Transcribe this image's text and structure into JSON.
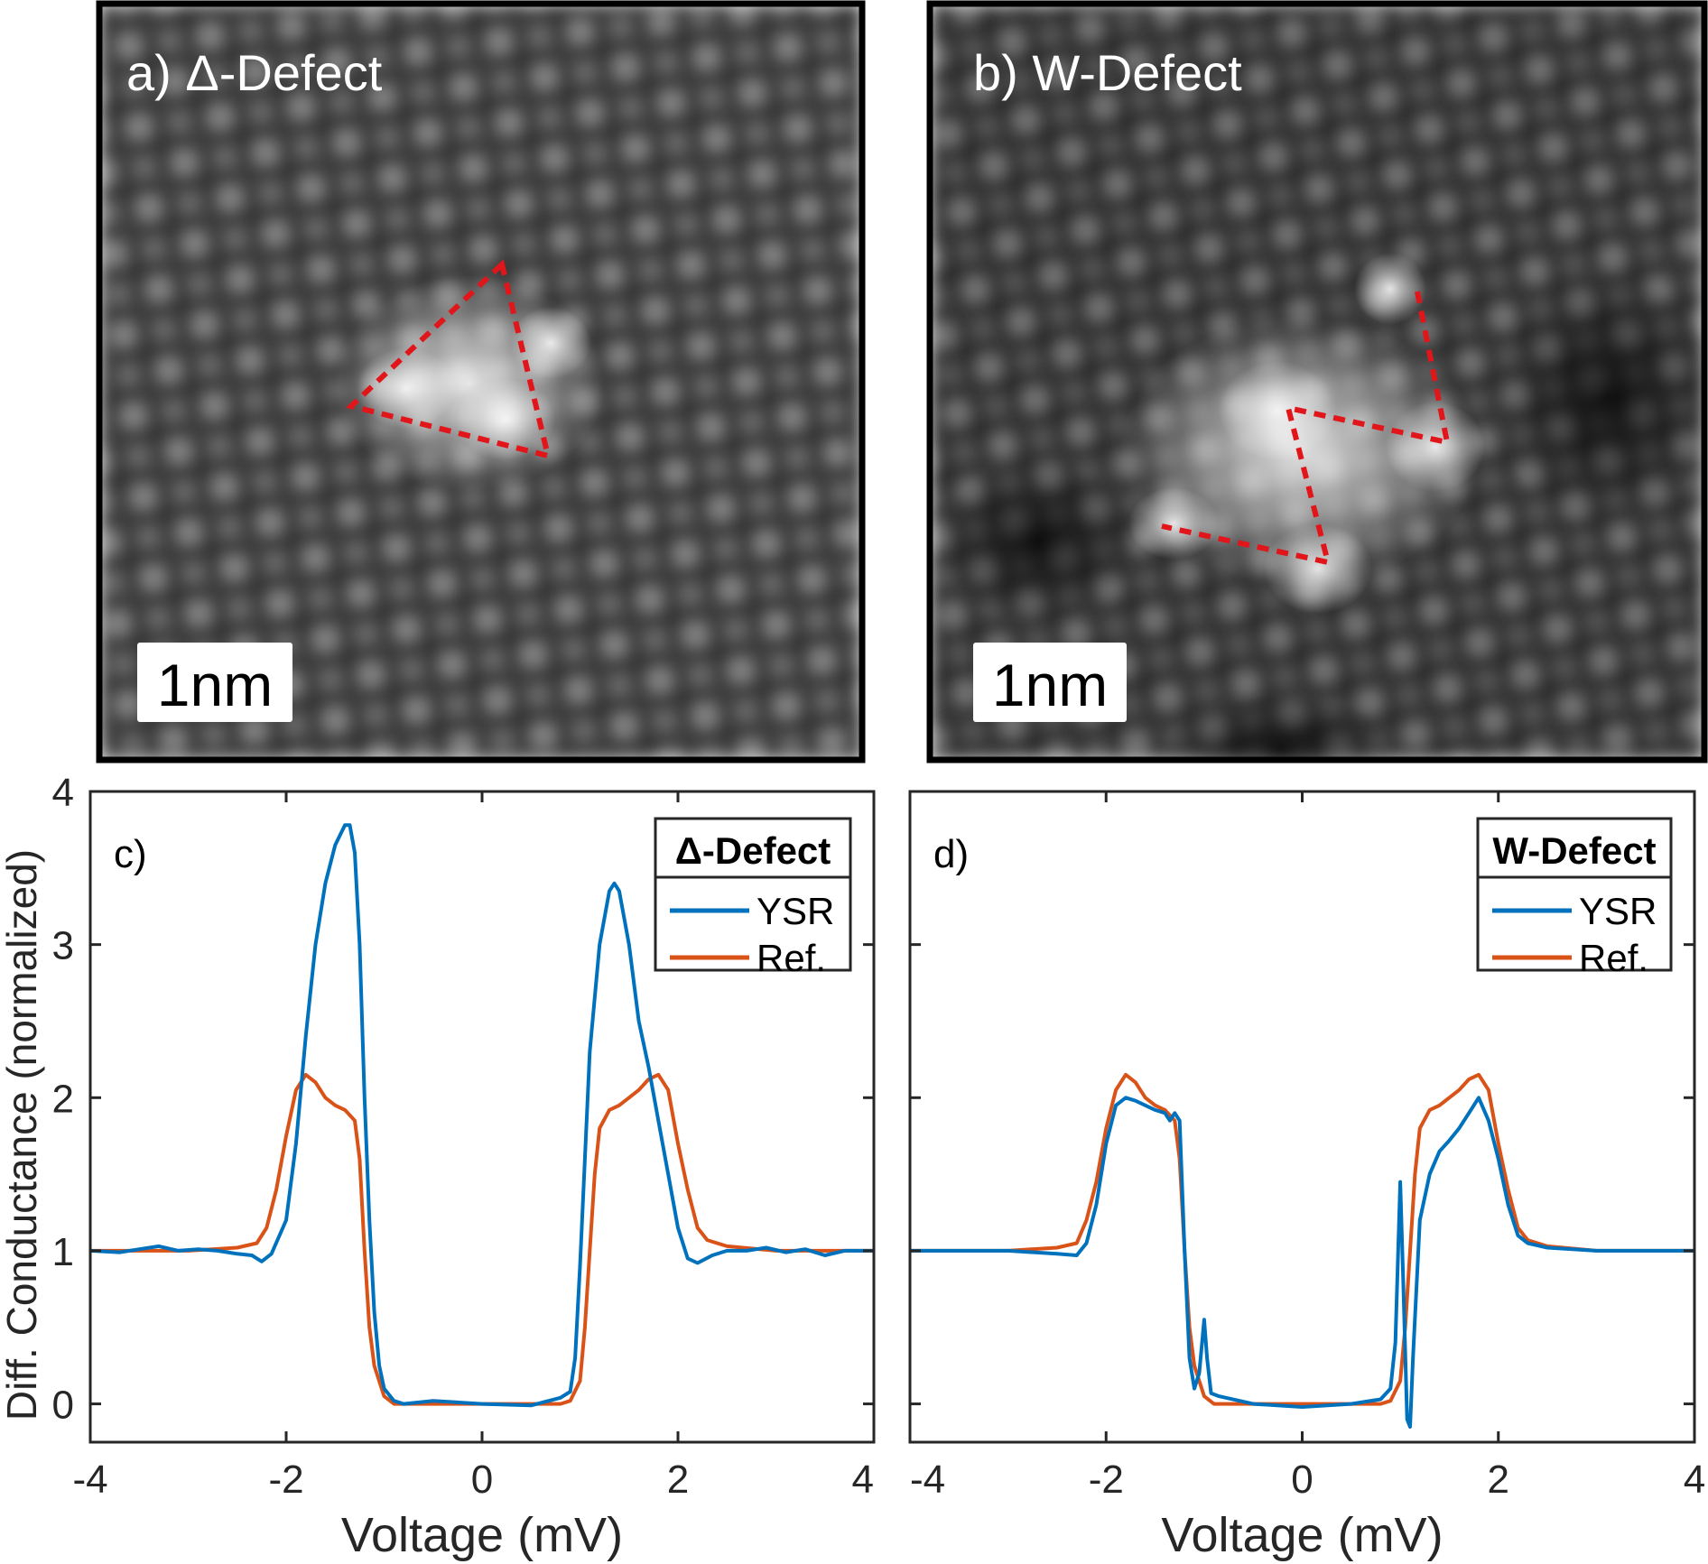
{
  "panels": {
    "a": {
      "label": "a) Δ-Defect",
      "scale_bar": "1nm"
    },
    "b": {
      "label": "b) W-Defect",
      "scale_bar": "1nm"
    }
  },
  "chart_data": [
    {
      "panel": "c)",
      "type": "line",
      "xlabel": "Voltage (mV)",
      "ylabel": "Diff. Conductance (normalized)",
      "xlim": [
        -4,
        4
      ],
      "ylim": [
        -0.25,
        4
      ],
      "xticks": [
        -4,
        -2,
        0,
        2,
        4
      ],
      "yticks": [
        0,
        1,
        2,
        3,
        4
      ],
      "legend": {
        "title": "Δ-Defect",
        "position": "top-right"
      },
      "series": [
        {
          "name": "YSR",
          "color": "#0072BD",
          "points": [
            [
              -4,
              1.0
            ],
            [
              -3.7,
              0.99
            ],
            [
              -3.5,
              1.01
            ],
            [
              -3.3,
              1.03
            ],
            [
              -3.1,
              1.0
            ],
            [
              -2.9,
              1.01
            ],
            [
              -2.7,
              1.0
            ],
            [
              -2.5,
              0.98
            ],
            [
              -2.35,
              0.97
            ],
            [
              -2.25,
              0.93
            ],
            [
              -2.15,
              0.98
            ],
            [
              -2.0,
              1.2
            ],
            [
              -1.9,
              1.7
            ],
            [
              -1.8,
              2.4
            ],
            [
              -1.7,
              3.0
            ],
            [
              -1.6,
              3.4
            ],
            [
              -1.5,
              3.65
            ],
            [
              -1.4,
              3.78
            ],
            [
              -1.35,
              3.78
            ],
            [
              -1.3,
              3.6
            ],
            [
              -1.25,
              3.0
            ],
            [
              -1.2,
              2.0
            ],
            [
              -1.15,
              1.2
            ],
            [
              -1.1,
              0.6
            ],
            [
              -1.05,
              0.25
            ],
            [
              -1.0,
              0.1
            ],
            [
              -0.9,
              0.02
            ],
            [
              -0.8,
              0.0
            ],
            [
              -0.5,
              0.02
            ],
            [
              0,
              0.0
            ],
            [
              0.5,
              -0.01
            ],
            [
              0.8,
              0.04
            ],
            [
              0.9,
              0.08
            ],
            [
              0.95,
              0.3
            ],
            [
              1.0,
              0.9
            ],
            [
              1.05,
              1.6
            ],
            [
              1.1,
              2.3
            ],
            [
              1.2,
              3.0
            ],
            [
              1.3,
              3.35
            ],
            [
              1.35,
              3.4
            ],
            [
              1.4,
              3.35
            ],
            [
              1.5,
              3.0
            ],
            [
              1.6,
              2.5
            ],
            [
              1.7,
              2.2
            ],
            [
              1.8,
              1.85
            ],
            [
              1.9,
              1.5
            ],
            [
              2.0,
              1.15
            ],
            [
              2.1,
              0.95
            ],
            [
              2.2,
              0.92
            ],
            [
              2.35,
              0.97
            ],
            [
              2.5,
              1.0
            ],
            [
              2.7,
              1.0
            ],
            [
              2.9,
              1.02
            ],
            [
              3.1,
              0.99
            ],
            [
              3.3,
              1.01
            ],
            [
              3.5,
              0.97
            ],
            [
              3.7,
              1.0
            ],
            [
              4,
              1.0
            ]
          ]
        },
        {
          "name": "Ref.",
          "color": "#D95319",
          "points": [
            [
              -4,
              1.0
            ],
            [
              -3.5,
              1.0
            ],
            [
              -3,
              1.0
            ],
            [
              -2.5,
              1.02
            ],
            [
              -2.3,
              1.05
            ],
            [
              -2.2,
              1.15
            ],
            [
              -2.1,
              1.4
            ],
            [
              -2.0,
              1.75
            ],
            [
              -1.9,
              2.05
            ],
            [
              -1.8,
              2.15
            ],
            [
              -1.7,
              2.1
            ],
            [
              -1.6,
              2.0
            ],
            [
              -1.5,
              1.95
            ],
            [
              -1.4,
              1.92
            ],
            [
              -1.3,
              1.85
            ],
            [
              -1.25,
              1.6
            ],
            [
              -1.2,
              1.0
            ],
            [
              -1.15,
              0.5
            ],
            [
              -1.1,
              0.25
            ],
            [
              -1.0,
              0.05
            ],
            [
              -0.9,
              0.0
            ],
            [
              0,
              0.0
            ],
            [
              0.8,
              0.0
            ],
            [
              0.9,
              0.02
            ],
            [
              1.0,
              0.15
            ],
            [
              1.05,
              0.5
            ],
            [
              1.1,
              1.0
            ],
            [
              1.15,
              1.5
            ],
            [
              1.2,
              1.8
            ],
            [
              1.3,
              1.92
            ],
            [
              1.4,
              1.95
            ],
            [
              1.5,
              2.0
            ],
            [
              1.6,
              2.05
            ],
            [
              1.7,
              2.12
            ],
            [
              1.8,
              2.15
            ],
            [
              1.9,
              2.05
            ],
            [
              2.0,
              1.7
            ],
            [
              2.1,
              1.4
            ],
            [
              2.2,
              1.15
            ],
            [
              2.3,
              1.07
            ],
            [
              2.5,
              1.03
            ],
            [
              3,
              1.0
            ],
            [
              3.5,
              1.0
            ],
            [
              4,
              1.0
            ]
          ]
        }
      ]
    },
    {
      "panel": "d)",
      "type": "line",
      "xlabel": "Voltage (mV)",
      "ylabel": "",
      "xlim": [
        -4,
        4
      ],
      "ylim": [
        -0.25,
        4
      ],
      "xticks": [
        -4,
        -2,
        0,
        2,
        4
      ],
      "yticks": [
        0,
        1,
        2,
        3,
        4
      ],
      "legend": {
        "title": "W-Defect",
        "position": "top-right"
      },
      "series": [
        {
          "name": "YSR",
          "color": "#0072BD",
          "points": [
            [
              -4,
              1.0
            ],
            [
              -3.5,
              1.0
            ],
            [
              -3,
              1.0
            ],
            [
              -2.5,
              0.98
            ],
            [
              -2.3,
              0.97
            ],
            [
              -2.2,
              1.05
            ],
            [
              -2.1,
              1.3
            ],
            [
              -2.0,
              1.7
            ],
            [
              -1.9,
              1.95
            ],
            [
              -1.8,
              2.0
            ],
            [
              -1.7,
              1.98
            ],
            [
              -1.6,
              1.95
            ],
            [
              -1.5,
              1.92
            ],
            [
              -1.4,
              1.9
            ],
            [
              -1.35,
              1.85
            ],
            [
              -1.3,
              1.9
            ],
            [
              -1.25,
              1.85
            ],
            [
              -1.2,
              1.0
            ],
            [
              -1.15,
              0.3
            ],
            [
              -1.1,
              0.1
            ],
            [
              -1.05,
              0.2
            ],
            [
              -1.0,
              0.55
            ],
            [
              -0.97,
              0.3
            ],
            [
              -0.93,
              0.07
            ],
            [
              -0.85,
              0.05
            ],
            [
              -0.5,
              0.0
            ],
            [
              0,
              -0.02
            ],
            [
              0.5,
              0.0
            ],
            [
              0.8,
              0.03
            ],
            [
              0.9,
              0.1
            ],
            [
              0.95,
              0.4
            ],
            [
              1.0,
              1.45
            ],
            [
              1.03,
              0.8
            ],
            [
              1.07,
              -0.1
            ],
            [
              1.1,
              -0.15
            ],
            [
              1.13,
              0.3
            ],
            [
              1.2,
              1.2
            ],
            [
              1.3,
              1.5
            ],
            [
              1.4,
              1.65
            ],
            [
              1.5,
              1.72
            ],
            [
              1.6,
              1.8
            ],
            [
              1.7,
              1.9
            ],
            [
              1.8,
              2.0
            ],
            [
              1.9,
              1.85
            ],
            [
              2.0,
              1.6
            ],
            [
              2.1,
              1.3
            ],
            [
              2.2,
              1.1
            ],
            [
              2.3,
              1.05
            ],
            [
              2.5,
              1.02
            ],
            [
              3,
              1.0
            ],
            [
              3.5,
              1.0
            ],
            [
              4,
              1.0
            ]
          ]
        },
        {
          "name": "Ref.",
          "color": "#D95319",
          "points": [
            [
              -4,
              1.0
            ],
            [
              -3.5,
              1.0
            ],
            [
              -3,
              1.0
            ],
            [
              -2.5,
              1.02
            ],
            [
              -2.3,
              1.05
            ],
            [
              -2.2,
              1.2
            ],
            [
              -2.1,
              1.45
            ],
            [
              -2.0,
              1.8
            ],
            [
              -1.9,
              2.05
            ],
            [
              -1.8,
              2.15
            ],
            [
              -1.7,
              2.1
            ],
            [
              -1.6,
              2.0
            ],
            [
              -1.5,
              1.95
            ],
            [
              -1.4,
              1.92
            ],
            [
              -1.3,
              1.85
            ],
            [
              -1.25,
              1.6
            ],
            [
              -1.2,
              1.0
            ],
            [
              -1.15,
              0.5
            ],
            [
              -1.1,
              0.25
            ],
            [
              -1.0,
              0.05
            ],
            [
              -0.9,
              0.0
            ],
            [
              0,
              0.0
            ],
            [
              0.8,
              0.0
            ],
            [
              0.9,
              0.02
            ],
            [
              1.0,
              0.15
            ],
            [
              1.05,
              0.5
            ],
            [
              1.1,
              1.0
            ],
            [
              1.15,
              1.5
            ],
            [
              1.2,
              1.8
            ],
            [
              1.3,
              1.92
            ],
            [
              1.4,
              1.95
            ],
            [
              1.5,
              2.0
            ],
            [
              1.6,
              2.05
            ],
            [
              1.7,
              2.12
            ],
            [
              1.8,
              2.15
            ],
            [
              1.9,
              2.05
            ],
            [
              2.0,
              1.7
            ],
            [
              2.1,
              1.4
            ],
            [
              2.2,
              1.15
            ],
            [
              2.3,
              1.07
            ],
            [
              2.5,
              1.03
            ],
            [
              3,
              1.0
            ],
            [
              3.5,
              1.0
            ],
            [
              4,
              1.0
            ]
          ]
        }
      ]
    }
  ]
}
